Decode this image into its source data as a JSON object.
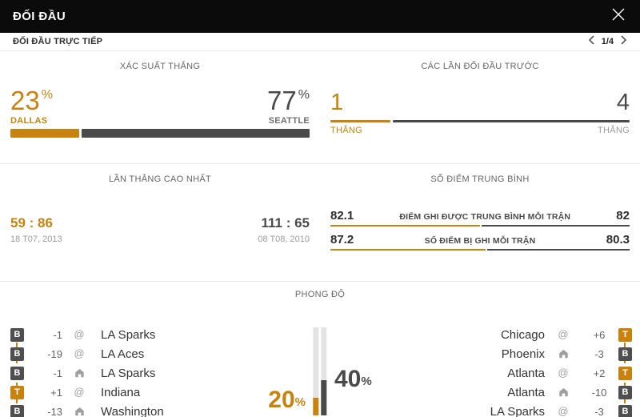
{
  "header": {
    "title": "ĐỐI ĐẦU"
  },
  "subheader": {
    "title": "ĐỐI ĐẦU TRỰC TIẾP",
    "page": "1/4"
  },
  "percent_sign": "%",
  "colors": {
    "accent": "#C8820D",
    "dark": "#4A4A4A",
    "header_bg": "#0B0B0B"
  },
  "win_probability": {
    "title": "XÁC SUẤT THẮNG",
    "home_value": "23",
    "home_name": "DALLAS",
    "home_pct": 23,
    "away_value": "77",
    "away_name": "SEATTLE",
    "away_pct": 77
  },
  "previous_meetings": {
    "title": "CÁC LẦN ĐỐI ĐẦU TRƯỚC",
    "home_value": "1",
    "home_label": "THẮNG",
    "home_pct": 20,
    "away_value": "4",
    "away_label": "THẮNG",
    "away_pct": 80
  },
  "biggest_win": {
    "title": "LẦN THẮNG CAO NHẤT",
    "home_score": "59 : 86",
    "home_date": "18 T07, 2013",
    "away_score": "111 : 65",
    "away_date": "08 T08, 2010"
  },
  "average_points": {
    "title": "SỐ ĐIỂM TRUNG BÌNH",
    "rows": [
      {
        "home": "82.1",
        "label": "ĐIỂM GHI ĐƯỢC TRUNG BÌNH MỖI TRẬN",
        "away": "82",
        "home_pct": 50
      },
      {
        "home": "87.2",
        "label": "SỐ ĐIỂM BỊ GHI MỖI TRẬN",
        "away": "80.3",
        "home_pct": 52
      }
    ]
  },
  "form": {
    "title": "PHONG ĐỘ",
    "at_symbol": "@",
    "home_pct_label": "20",
    "home_pct": 20,
    "away_pct_label": "40",
    "away_pct": 40,
    "home_matches": [
      {
        "result": "B",
        "diff": "-1",
        "venue": "away",
        "team": "LA Sparks"
      },
      {
        "result": "B",
        "diff": "-19",
        "venue": "away",
        "team": "LA Aces"
      },
      {
        "result": "B",
        "diff": "-1",
        "venue": "home",
        "team": "LA Sparks"
      },
      {
        "result": "T",
        "diff": "+1",
        "venue": "away",
        "team": "Indiana"
      },
      {
        "result": "B",
        "diff": "-13",
        "venue": "home",
        "team": "Washington"
      }
    ],
    "away_matches": [
      {
        "team": "Chicago",
        "venue": "away",
        "diff": "+6",
        "result": "T"
      },
      {
        "team": "Phoenix",
        "venue": "home",
        "diff": "-3",
        "result": "B"
      },
      {
        "team": "Atlanta",
        "venue": "away",
        "diff": "+2",
        "result": "T"
      },
      {
        "team": "Atlanta",
        "venue": "home",
        "diff": "-10",
        "result": "B"
      },
      {
        "team": "LA Sparks",
        "venue": "away",
        "diff": "-3",
        "result": "B"
      }
    ]
  }
}
